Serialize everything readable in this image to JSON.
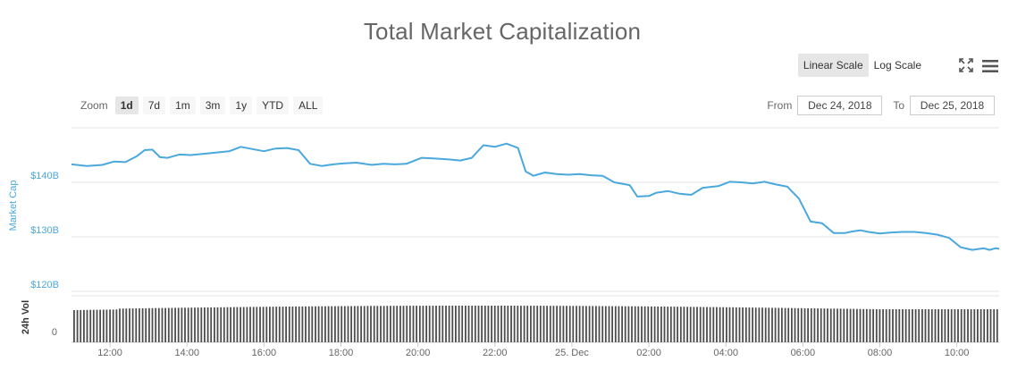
{
  "header": {
    "title": "Total Market Capitalization"
  },
  "scale": {
    "linear_label": "Linear Scale",
    "log_label": "Log Scale",
    "active": "linear"
  },
  "icons": {
    "fullscreen": "fullscreen-icon",
    "menu": "menu-icon"
  },
  "zoom": {
    "label": "Zoom",
    "options": [
      "1d",
      "7d",
      "1m",
      "3m",
      "1y",
      "YTD",
      "ALL"
    ],
    "active": "1d"
  },
  "range": {
    "from_label": "From",
    "from_value": "Dec 24, 2018",
    "to_label": "To",
    "to_value": "Dec 25, 2018"
  },
  "colors": {
    "line": "#4aa8dc",
    "volume": "#4d4d4d",
    "grid": "#e6e6e6"
  },
  "chart_data": {
    "type": "line",
    "title": "Total Market Capitalization",
    "ylabel": "Market Cap",
    "volume_label": "24h Vol",
    "ylim": [
      120,
      150
    ],
    "yticks": [
      "$140B",
      "$130B",
      "$120B"
    ],
    "ytick_values": [
      140,
      130,
      120
    ],
    "volume_ytick": "0",
    "xlim": [
      11.0,
      35.1
    ],
    "xticks": [
      {
        "x": 12,
        "label": "12:00"
      },
      {
        "x": 14,
        "label": "14:00"
      },
      {
        "x": 16,
        "label": "16:00"
      },
      {
        "x": 18,
        "label": "18:00"
      },
      {
        "x": 20,
        "label": "20:00"
      },
      {
        "x": 22,
        "label": "22:00"
      },
      {
        "x": 24,
        "label": "25. Dec"
      },
      {
        "x": 26,
        "label": "02:00"
      },
      {
        "x": 28,
        "label": "04:00"
      },
      {
        "x": 30,
        "label": "06:00"
      },
      {
        "x": 32,
        "label": "08:00"
      },
      {
        "x": 34,
        "label": "10:00"
      }
    ],
    "series": [
      {
        "x": [
          11.0,
          11.4,
          11.8,
          12.1,
          12.4,
          12.7,
          12.9,
          13.1,
          13.3,
          13.5,
          13.8,
          14.1,
          14.4,
          14.8,
          15.1,
          15.4,
          15.7,
          16.0,
          16.3,
          16.6,
          16.9,
          17.2,
          17.5,
          17.8,
          18.1,
          18.4,
          18.8,
          19.1,
          19.4,
          19.7,
          20.1,
          20.4,
          20.8,
          21.1,
          21.4,
          21.7,
          22.0,
          22.3,
          22.6,
          22.8,
          23.0,
          23.3,
          23.6,
          23.9,
          24.2,
          24.5,
          24.8,
          25.1,
          25.5,
          25.7,
          26.0,
          26.2,
          26.5,
          26.8,
          27.1,
          27.4,
          27.8,
          28.1,
          28.4,
          28.7,
          29.0,
          29.3,
          29.6,
          29.9,
          30.2,
          30.5,
          30.8,
          31.1,
          31.3,
          31.5,
          31.7,
          32.0,
          32.3,
          32.6,
          32.9,
          33.2,
          33.5,
          33.8,
          34.1,
          34.4,
          34.7,
          34.85,
          35.0,
          35.1
        ],
        "values": [
          143.3,
          143.0,
          143.2,
          143.8,
          143.7,
          144.8,
          145.9,
          146.0,
          144.6,
          144.5,
          145.1,
          145.0,
          145.2,
          145.5,
          145.7,
          146.5,
          146.1,
          145.7,
          146.2,
          146.3,
          145.9,
          143.4,
          143.0,
          143.3,
          143.5,
          143.6,
          143.2,
          143.4,
          143.3,
          143.4,
          144.5,
          144.4,
          144.2,
          144.0,
          144.5,
          146.8,
          146.5,
          147.1,
          146.3,
          142.0,
          141.2,
          141.8,
          141.5,
          141.4,
          141.5,
          141.3,
          141.2,
          140.0,
          139.5,
          137.4,
          137.5,
          138.1,
          138.4,
          137.9,
          137.7,
          139.0,
          139.3,
          140.1,
          140.0,
          139.8,
          140.1,
          139.6,
          139.2,
          137.0,
          132.8,
          132.5,
          130.7,
          130.7,
          131.0,
          131.2,
          130.9,
          130.6,
          130.8,
          130.9,
          130.9,
          130.7,
          130.4,
          129.8,
          128.1,
          127.6,
          127.9,
          127.6,
          127.9,
          127.8
        ]
      }
    ]
  }
}
